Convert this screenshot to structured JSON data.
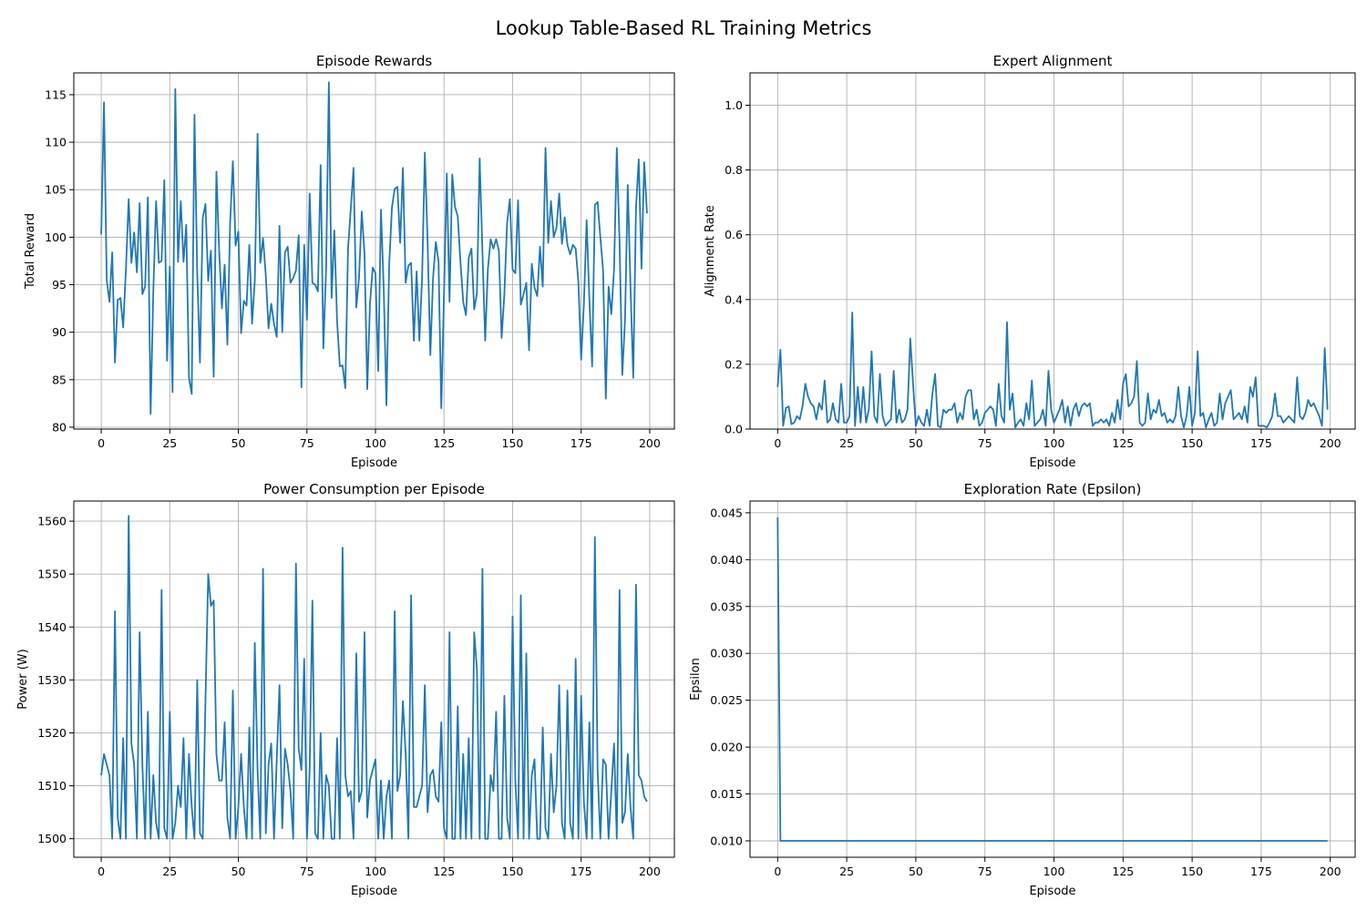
{
  "figure": {
    "suptitle": "Lookup Table-Based RL Training Metrics"
  },
  "chart_data": [
    {
      "type": "line",
      "title": "Episode Rewards",
      "xlabel": "Episode",
      "ylabel": "Total Reward",
      "xlim": [
        -10,
        209
      ],
      "ylim": [
        79.8,
        117.3
      ],
      "xticks": [
        0,
        25,
        50,
        75,
        100,
        125,
        150,
        175,
        200
      ],
      "yticks": [
        80,
        85,
        90,
        95,
        100,
        105,
        110,
        115
      ],
      "grid": true,
      "color": "#1f77b4",
      "x_start": 0,
      "y": [
        100.3,
        114.2,
        95.5,
        93.2,
        98.4,
        86.8,
        93.4,
        93.6,
        90.5,
        96.6,
        104.0,
        97.3,
        100.5,
        96.3,
        103.6,
        94.0,
        94.8,
        104.2,
        81.4,
        94.4,
        103.8,
        97.3,
        97.5,
        106.0,
        87.0,
        96.9,
        83.7,
        115.6,
        97.4,
        103.8,
        97.4,
        101.3,
        85.2,
        83.5,
        112.9,
        96.2,
        86.8,
        102.0,
        103.5,
        95.4,
        98.6,
        85.3,
        106.9,
        98.6,
        92.5,
        97.1,
        88.7,
        101.5,
        108.0,
        99.1,
        100.6,
        89.9,
        93.3,
        92.8,
        99.2,
        90.9,
        95.4,
        110.9,
        97.3,
        99.9,
        96.0,
        90.4,
        93.0,
        90.9,
        89.5,
        101.2,
        90.0,
        98.4,
        99.0,
        95.2,
        95.7,
        96.5,
        100.2,
        84.2,
        99.2,
        91.3,
        104.6,
        95.2,
        95.0,
        94.3,
        107.6,
        88.3,
        96.7,
        116.3,
        93.6,
        100.7,
        91.2,
        86.4,
        86.5,
        84.1,
        98.8,
        103.0,
        107.3,
        92.6,
        95.7,
        102.7,
        98.3,
        84.0,
        93.0,
        96.8,
        96.2,
        85.9,
        102.9,
        94.7,
        82.3,
        97.1,
        103.1,
        105.1,
        105.3,
        99.4,
        107.3,
        95.2,
        97.0,
        97.3,
        89.1,
        96.4,
        89.1,
        95.7,
        108.9,
        99.6,
        87.6,
        95.7,
        99.5,
        97.4,
        82.0,
        94.1,
        106.7,
        93.2,
        106.6,
        103.2,
        102.2,
        97.3,
        93.2,
        91.8,
        97.8,
        98.8,
        92.4,
        94.1,
        108.3,
        98.5,
        89.1,
        96.7,
        99.8,
        98.8,
        99.8,
        98.6,
        89.4,
        94.0,
        101.5,
        104.0,
        96.6,
        96.2,
        103.9,
        92.9,
        94.0,
        95.2,
        88.1,
        97.2,
        94.7,
        93.8,
        99.0,
        94.8,
        109.4,
        99.4,
        103.8,
        100.0,
        101.0,
        104.6,
        99.3,
        102.1,
        99.2,
        98.2,
        99.2,
        98.8,
        95.3,
        87.1,
        93.0,
        101.8,
        93.4,
        86.4,
        103.4,
        103.7,
        100.0,
        96.5,
        83.0,
        94.8,
        91.9,
        96.6,
        109.4,
        99.5,
        85.5,
        91.3,
        105.5,
        94.7,
        85.2,
        103.1,
        108.2,
        96.7,
        107.9,
        102.5
      ]
    },
    {
      "type": "line",
      "title": "Expert Alignment",
      "xlabel": "Episode",
      "ylabel": "Alignment Rate",
      "xlim": [
        -10,
        209
      ],
      "ylim": [
        0,
        1.1
      ],
      "xticks": [
        0,
        25,
        50,
        75,
        100,
        125,
        150,
        175,
        200
      ],
      "yticks": [
        0.0,
        0.2,
        0.4,
        0.6,
        0.8,
        1.0
      ],
      "grid": true,
      "color": "#1f77b4",
      "x_start": 0,
      "y": [
        0.13,
        0.245,
        0.01,
        0.065,
        0.07,
        0.015,
        0.02,
        0.04,
        0.03,
        0.07,
        0.14,
        0.1,
        0.08,
        0.07,
        0.03,
        0.08,
        0.06,
        0.15,
        0.02,
        0.03,
        0.08,
        0.03,
        0.02,
        0.14,
        0.02,
        0.02,
        0.04,
        0.36,
        0.01,
        0.13,
        0.02,
        0.13,
        0.02,
        0.06,
        0.24,
        0.04,
        0.02,
        0.17,
        0.04,
        0.01,
        0.02,
        0.03,
        0.18,
        0.02,
        0.06,
        0.02,
        0.03,
        0.06,
        0.28,
        0.14,
        0.01,
        0.04,
        0.02,
        0.01,
        0.06,
        0.01,
        0.11,
        0.17,
        0.01,
        0.005,
        0.06,
        0.05,
        0.06,
        0.06,
        0.08,
        0.02,
        0.05,
        0.03,
        0.1,
        0.12,
        0.12,
        0.03,
        0.06,
        0.01,
        0.02,
        0.05,
        0.06,
        0.07,
        0.06,
        0.01,
        0.14,
        0.04,
        0.02,
        0.33,
        0.06,
        0.11,
        0.005,
        0.02,
        0.03,
        0.01,
        0.08,
        0.03,
        0.15,
        0.01,
        0.02,
        0.03,
        0.06,
        0.01,
        0.18,
        0.06,
        0.02,
        0.04,
        0.06,
        0.09,
        0.02,
        0.07,
        0.01,
        0.06,
        0.08,
        0.04,
        0.07,
        0.08,
        0.07,
        0.08,
        0.01,
        0.02,
        0.02,
        0.03,
        0.02,
        0.03,
        0.01,
        0.05,
        0.02,
        0.09,
        0.03,
        0.14,
        0.17,
        0.07,
        0.08,
        0.1,
        0.21,
        0.02,
        0.01,
        0.02,
        0.11,
        0.03,
        0.06,
        0.05,
        0.09,
        0.04,
        0.05,
        0.02,
        0.03,
        0.02,
        0.04,
        0.13,
        0.04,
        0.005,
        0.04,
        0.13,
        0.01,
        0.05,
        0.24,
        0.04,
        0.05,
        0.005,
        0.03,
        0.05,
        0.01,
        0.02,
        0.11,
        0.03,
        0.08,
        0.1,
        0.12,
        0.03,
        0.04,
        0.05,
        0.03,
        0.07,
        0.02,
        0.13,
        0.1,
        0.16,
        0.01,
        0.01,
        0.01,
        0.005,
        0.02,
        0.04,
        0.11,
        0.04,
        0.04,
        0.02,
        0.03,
        0.04,
        0.03,
        0.02,
        0.16,
        0.04,
        0.03,
        0.05,
        0.09,
        0.07,
        0.08,
        0.06,
        0.04,
        0.01,
        0.25,
        0.06
      ]
    },
    {
      "type": "line",
      "title": "Power Consumption per Episode",
      "xlabel": "Episode",
      "ylabel": "Power (W)",
      "xlim": [
        -10,
        209
      ],
      "ylim": [
        1496.5,
        1563.8
      ],
      "xticks": [
        0,
        25,
        50,
        75,
        100,
        125,
        150,
        175,
        200
      ],
      "yticks": [
        1500,
        1510,
        1520,
        1530,
        1540,
        1550,
        1560
      ],
      "grid": true,
      "color": "#1f77b4",
      "x_start": 0,
      "y": [
        1512,
        1516,
        1514,
        1512,
        1500,
        1543,
        1504,
        1500,
        1519,
        1500,
        1561,
        1518,
        1514,
        1500,
        1539,
        1514,
        1500,
        1524,
        1500,
        1512,
        1503,
        1500,
        1547,
        1502,
        1500,
        1524,
        1500,
        1503,
        1510,
        1506,
        1519,
        1500,
        1516,
        1506,
        1500,
        1530,
        1501,
        1500,
        1526,
        1550,
        1544,
        1545,
        1516,
        1511,
        1511,
        1522,
        1504,
        1500,
        1528,
        1500,
        1506,
        1516,
        1506,
        1500,
        1521,
        1500,
        1537,
        1513,
        1500,
        1551,
        1501,
        1514,
        1518,
        1500,
        1515,
        1529,
        1502,
        1517,
        1514,
        1509,
        1500,
        1552,
        1517,
        1513,
        1534,
        1500,
        1513,
        1545,
        1501,
        1500,
        1520,
        1500,
        1512,
        1510,
        1500,
        1500,
        1519,
        1500,
        1555,
        1512,
        1508,
        1509,
        1500,
        1535,
        1507,
        1509,
        1539,
        1504,
        1511,
        1513,
        1515,
        1500,
        1511,
        1500,
        1508,
        1511,
        1500,
        1543,
        1509,
        1512,
        1526,
        1516,
        1500,
        1546,
        1506,
        1506,
        1508,
        1510,
        1529,
        1505,
        1512,
        1513,
        1508,
        1507,
        1522,
        1502,
        1500,
        1539,
        1500,
        1500,
        1525,
        1500,
        1516,
        1500,
        1519,
        1500,
        1539,
        1532,
        1500,
        1551,
        1500,
        1500,
        1512,
        1509,
        1524,
        1500,
        1500,
        1527,
        1504,
        1500,
        1542,
        1511,
        1500,
        1546,
        1500,
        1535,
        1500,
        1512,
        1515,
        1500,
        1500,
        1521,
        1502,
        1500,
        1516,
        1505,
        1510,
        1529,
        1503,
        1500,
        1528,
        1503,
        1500,
        1534,
        1500,
        1527,
        1507,
        1500,
        1522,
        1500,
        1557,
        1513,
        1500,
        1515,
        1514,
        1500,
        1509,
        1518,
        1500,
        1547,
        1503,
        1505,
        1516,
        1506,
        1500,
        1548,
        1512,
        1511,
        1508,
        1507
      ]
    },
    {
      "type": "line",
      "title": "Exploration Rate (Epsilon)",
      "xlabel": "Episode",
      "ylabel": "Epsilon",
      "xlim": [
        -10,
        209
      ],
      "ylim": [
        0.00825,
        0.04625
      ],
      "xticks": [
        0,
        25,
        50,
        75,
        100,
        125,
        150,
        175,
        200
      ],
      "yticks": [
        0.01,
        0.015,
        0.02,
        0.025,
        0.03,
        0.035,
        0.04,
        0.045
      ],
      "ytick_labels": [
        "0.010",
        "0.015",
        "0.020",
        "0.025",
        "0.030",
        "0.035",
        "0.040",
        "0.045"
      ],
      "grid": true,
      "color": "#1f77b4",
      "x": [
        0,
        1,
        199
      ],
      "y": [
        0.0445,
        0.01,
        0.01
      ]
    }
  ]
}
